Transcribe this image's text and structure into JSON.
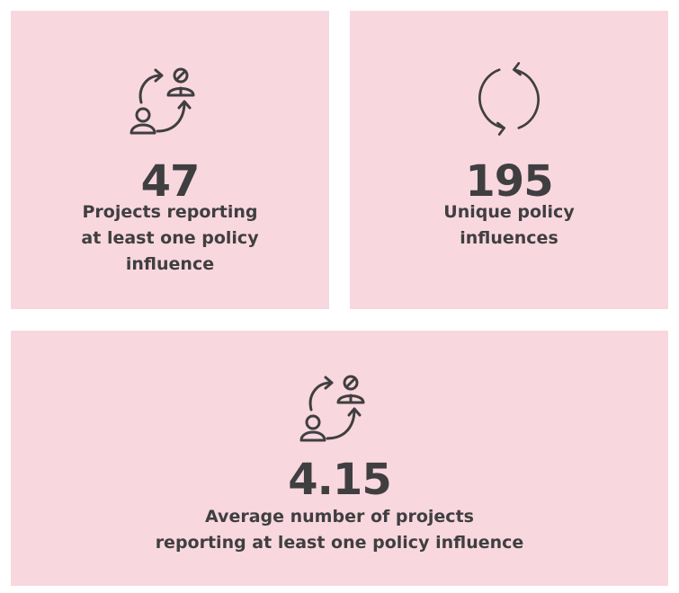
{
  "cards": [
    {
      "icon": "influence-arrows-people-icon",
      "value": "47",
      "label": "Projects reporting\nat least one policy\ninfluence"
    },
    {
      "icon": "refresh-cycle-icon",
      "value": "195",
      "label": "Unique policy\ninfluences"
    },
    {
      "icon": "influence-arrows-people-icon",
      "value": "4.15",
      "label": "Average number of projects\nreporting at least one policy influence"
    }
  ],
  "colors": {
    "card_background": "#f9d7de",
    "text": "#3f3f41",
    "page_background": "#ffffff"
  }
}
